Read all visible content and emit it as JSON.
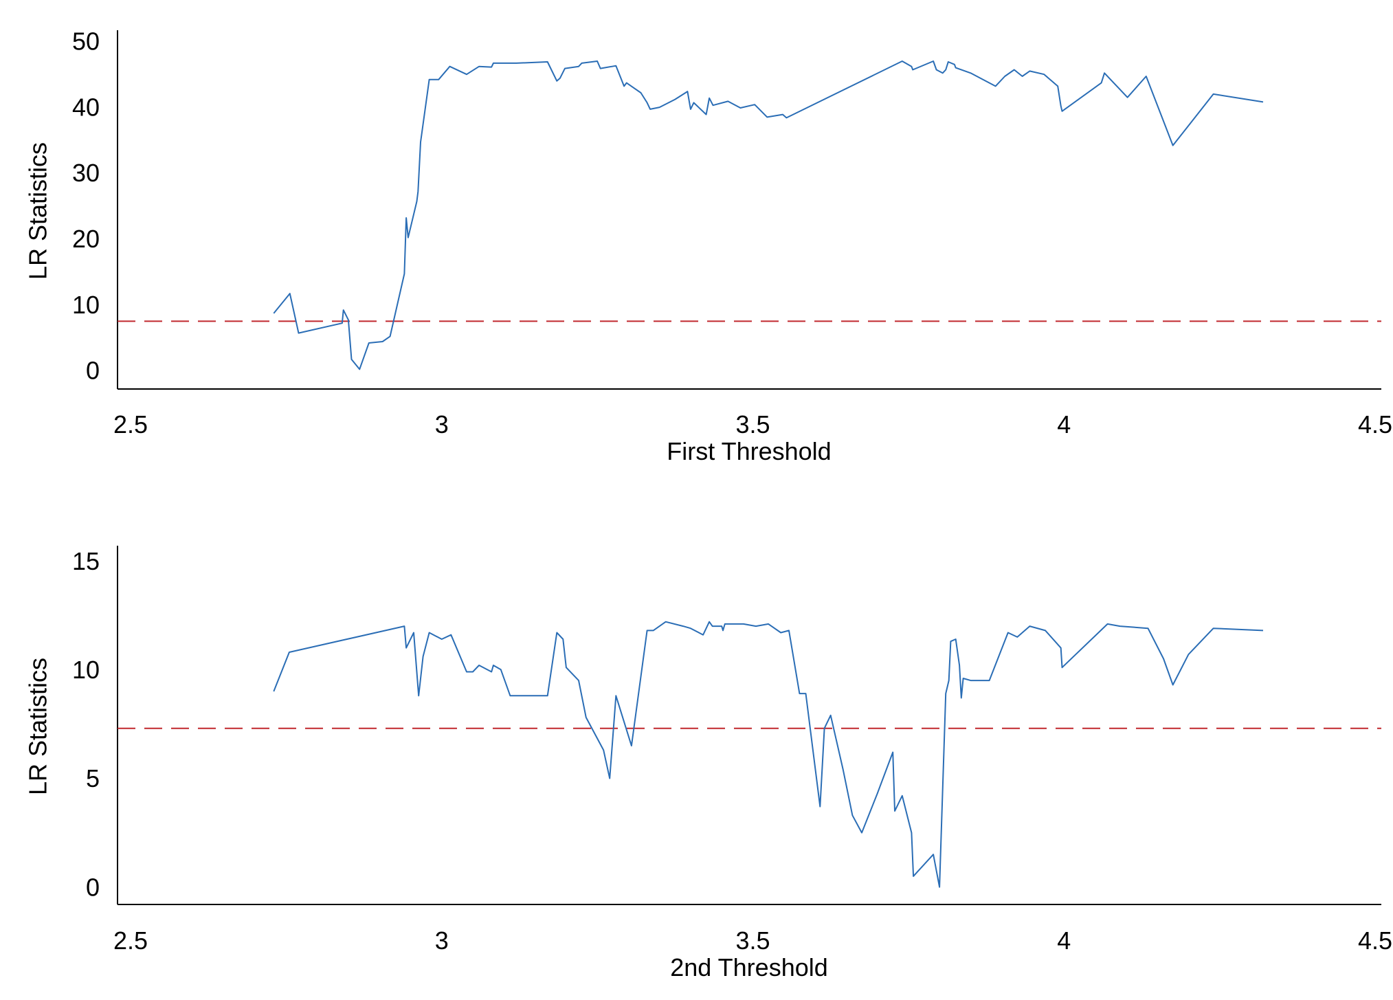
{
  "chart_data": [
    {
      "type": "line",
      "xlabel": "First Threshold",
      "ylabel": "LR Statistics",
      "xlim": [
        2.5,
        4.5
      ],
      "ylim": [
        -2.5,
        52
      ],
      "xticks": [
        "2.5",
        "3",
        "3.5",
        "4",
        "4.5"
      ],
      "xtick_values": [
        2.5,
        3,
        3.5,
        4,
        4.5
      ],
      "yticks": [
        "0",
        "10",
        "20",
        "30",
        "40",
        "50"
      ],
      "ytick_values": [
        0,
        10,
        20,
        30,
        40,
        50
      ],
      "critical_value": 7.8,
      "colors": {
        "series": "#2a6db5",
        "critical": "#c0272d",
        "axis": "#000000"
      },
      "grid": false,
      "series": [
        {
          "points": [
            [
              2.73,
              9.0
            ],
            [
              2.756,
              12.0
            ],
            [
              2.77,
              6.0
            ],
            [
              2.84,
              7.5
            ],
            [
              2.842,
              9.5
            ],
            [
              2.85,
              8.0
            ],
            [
              2.855,
              2.0
            ],
            [
              2.868,
              0.5
            ],
            [
              2.883,
              4.5
            ],
            [
              2.905,
              4.7
            ],
            [
              2.917,
              5.5
            ],
            [
              2.94,
              15.0
            ],
            [
              2.943,
              23.5
            ],
            [
              2.946,
              20.5
            ],
            [
              2.96,
              26.0
            ],
            [
              2.962,
              27.5
            ],
            [
              2.966,
              35.0
            ],
            [
              2.98,
              44.5
            ],
            [
              2.995,
              44.5
            ],
            [
              3.013,
              46.5
            ],
            [
              3.04,
              45.3
            ],
            [
              3.06,
              46.5
            ],
            [
              3.08,
              46.4
            ],
            [
              3.083,
              47.0
            ],
            [
              3.12,
              47.0
            ],
            [
              3.17,
              47.2
            ],
            [
              3.185,
              44.3
            ],
            [
              3.19,
              44.7
            ],
            [
              3.198,
              46.2
            ],
            [
              3.22,
              46.5
            ],
            [
              3.225,
              47.0
            ],
            [
              3.25,
              47.3
            ],
            [
              3.255,
              46.2
            ],
            [
              3.28,
              46.6
            ],
            [
              3.293,
              43.5
            ],
            [
              3.297,
              44.0
            ],
            [
              3.32,
              42.5
            ],
            [
              3.33,
              41.0
            ],
            [
              3.335,
              40.0
            ],
            [
              3.35,
              40.3
            ],
            [
              3.375,
              41.5
            ],
            [
              3.395,
              42.7
            ],
            [
              3.4,
              40.0
            ],
            [
              3.405,
              41.0
            ],
            [
              3.425,
              39.2
            ],
            [
              3.43,
              41.7
            ],
            [
              3.436,
              40.6
            ],
            [
              3.46,
              41.2
            ],
            [
              3.48,
              40.2
            ],
            [
              3.503,
              40.7
            ],
            [
              3.523,
              38.8
            ],
            [
              3.548,
              39.2
            ],
            [
              3.554,
              38.7
            ],
            [
              3.74,
              47.3
            ],
            [
              3.755,
              46.5
            ],
            [
              3.757,
              46.0
            ],
            [
              3.79,
              47.3
            ],
            [
              3.795,
              46.0
            ],
            [
              3.805,
              45.5
            ],
            [
              3.81,
              46.0
            ],
            [
              3.814,
              47.2
            ],
            [
              3.824,
              46.8
            ],
            [
              3.826,
              46.3
            ],
            [
              3.85,
              45.5
            ],
            [
              3.89,
              43.5
            ],
            [
              3.905,
              45.0
            ],
            [
              3.92,
              46.0
            ],
            [
              3.933,
              45.0
            ],
            [
              3.945,
              45.8
            ],
            [
              3.968,
              45.3
            ],
            [
              3.99,
              43.5
            ],
            [
              3.995,
              40.5
            ],
            [
              3.997,
              39.7
            ],
            [
              4.06,
              44.0
            ],
            [
              4.065,
              45.5
            ],
            [
              4.085,
              43.5
            ],
            [
              4.102,
              41.8
            ],
            [
              4.132,
              45.0
            ],
            [
              4.175,
              34.5
            ],
            [
              4.2,
              37.5
            ],
            [
              4.24,
              42.3
            ],
            [
              4.32,
              41.1
            ]
          ]
        }
      ]
    },
    {
      "type": "line",
      "xlabel": "2nd Threshold",
      "ylabel": "LR Statistics",
      "xlim": [
        2.5,
        4.5
      ],
      "ylim": [
        -0.7,
        15.8
      ],
      "xticks": [
        "2.5",
        "3",
        "3.5",
        "4",
        "4.5"
      ],
      "xtick_values": [
        2.5,
        3,
        3.5,
        4,
        4.5
      ],
      "yticks": [
        "0",
        "5",
        "10",
        "15"
      ],
      "ytick_values": [
        0,
        5,
        10,
        15
      ],
      "critical_value": 7.4,
      "colors": {
        "series": "#2a6db5",
        "critical": "#c0272d",
        "axis": "#000000"
      },
      "grid": false,
      "series": [
        {
          "points": [
            [
              2.73,
              9.1
            ],
            [
              2.755,
              10.9
            ],
            [
              2.94,
              12.1
            ],
            [
              2.943,
              11.1
            ],
            [
              2.955,
              11.8
            ],
            [
              2.963,
              8.9
            ],
            [
              2.97,
              10.7
            ],
            [
              2.98,
              11.8
            ],
            [
              3.0,
              11.5
            ],
            [
              3.015,
              11.7
            ],
            [
              3.04,
              10.0
            ],
            [
              3.05,
              10.0
            ],
            [
              3.06,
              10.3
            ],
            [
              3.08,
              10.0
            ],
            [
              3.083,
              10.3
            ],
            [
              3.095,
              10.1
            ],
            [
              3.11,
              8.9
            ],
            [
              3.17,
              8.9
            ],
            [
              3.185,
              11.8
            ],
            [
              3.195,
              11.5
            ],
            [
              3.2,
              10.2
            ],
            [
              3.22,
              9.6
            ],
            [
              3.232,
              7.9
            ],
            [
              3.26,
              6.4
            ],
            [
              3.27,
              5.1
            ],
            [
              3.28,
              8.9
            ],
            [
              3.305,
              6.6
            ],
            [
              3.33,
              11.9
            ],
            [
              3.34,
              11.9
            ],
            [
              3.36,
              12.3
            ],
            [
              3.388,
              12.1
            ],
            [
              3.4,
              12.0
            ],
            [
              3.42,
              11.7
            ],
            [
              3.43,
              12.3
            ],
            [
              3.435,
              12.1
            ],
            [
              3.45,
              12.1
            ],
            [
              3.452,
              11.9
            ],
            [
              3.455,
              12.2
            ],
            [
              3.485,
              12.2
            ],
            [
              3.505,
              12.1
            ],
            [
              3.525,
              12.2
            ],
            [
              3.545,
              11.8
            ],
            [
              3.558,
              11.9
            ],
            [
              3.575,
              9.0
            ],
            [
              3.585,
              9.0
            ],
            [
              3.608,
              3.8
            ],
            [
              3.615,
              7.4
            ],
            [
              3.625,
              8.0
            ],
            [
              3.645,
              5.5
            ],
            [
              3.66,
              3.4
            ],
            [
              3.675,
              2.6
            ],
            [
              3.7,
              4.4
            ],
            [
              3.725,
              6.3
            ],
            [
              3.728,
              3.6
            ],
            [
              3.74,
              4.3
            ],
            [
              3.755,
              2.6
            ],
            [
              3.758,
              0.6
            ],
            [
              3.79,
              1.6
            ],
            [
              3.8,
              0.1
            ],
            [
              3.81,
              9.0
            ],
            [
              3.815,
              9.6
            ],
            [
              3.818,
              11.4
            ],
            [
              3.826,
              11.5
            ],
            [
              3.832,
              10.3
            ],
            [
              3.835,
              8.8
            ],
            [
              3.838,
              9.7
            ],
            [
              3.85,
              9.6
            ],
            [
              3.88,
              9.6
            ],
            [
              3.91,
              11.8
            ],
            [
              3.925,
              11.6
            ],
            [
              3.945,
              12.1
            ],
            [
              3.97,
              11.9
            ],
            [
              3.995,
              11.1
            ],
            [
              3.997,
              10.2
            ],
            [
              4.07,
              12.2
            ],
            [
              4.09,
              12.1
            ],
            [
              4.135,
              12.0
            ],
            [
              4.16,
              10.6
            ],
            [
              4.175,
              9.4
            ],
            [
              4.2,
              10.8
            ],
            [
              4.24,
              12.0
            ],
            [
              4.32,
              11.9
            ]
          ]
        }
      ]
    }
  ]
}
